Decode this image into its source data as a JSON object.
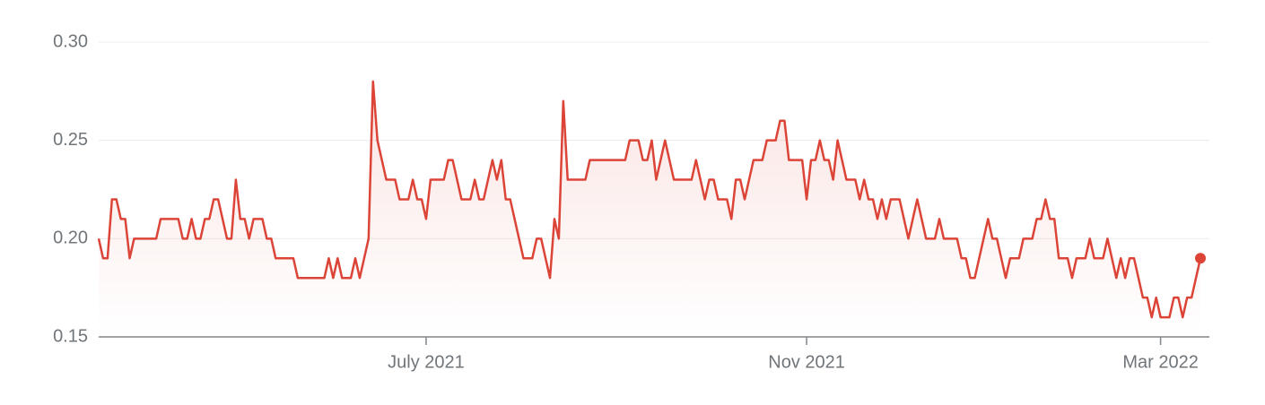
{
  "chart_data": {
    "type": "line",
    "color": "#db4437",
    "grid": true,
    "ylim": [
      0.15,
      0.3
    ],
    "yticks": [
      0.15,
      {
        "value": 0.2,
        "label": "0.20"
      },
      0.25,
      {
        "value": 0.3,
        "label": "0.30"
      }
    ],
    "categories": [
      null,
      null,
      null,
      null,
      null,
      null,
      null,
      null,
      null,
      null,
      null,
      null,
      null,
      null,
      null,
      null,
      null,
      null,
      null,
      null,
      null,
      null,
      null,
      null,
      null,
      null,
      null,
      null,
      null,
      null,
      null,
      null,
      null,
      null,
      null,
      null,
      null,
      null,
      null,
      null,
      null,
      null,
      null,
      null,
      null,
      null,
      null,
      null,
      null,
      null,
      null,
      null,
      null,
      null,
      null,
      null,
      null,
      null,
      null,
      null,
      null,
      null,
      null,
      null,
      null,
      null,
      null,
      null,
      null,
      null,
      null,
      null,
      null,
      null,
      "July 2021",
      null,
      null,
      null,
      null,
      null,
      null,
      null,
      null,
      null,
      null,
      null,
      null,
      null,
      null,
      null,
      null,
      null,
      null,
      null,
      null,
      null,
      null,
      null,
      null,
      null,
      null,
      null,
      null,
      null,
      null,
      null,
      null,
      null,
      null,
      null,
      null,
      null,
      null,
      null,
      null,
      null,
      null,
      null,
      null,
      null,
      null,
      null,
      null,
      null,
      null,
      null,
      null,
      null,
      null,
      null,
      null,
      null,
      null,
      null,
      null,
      null,
      null,
      null,
      null,
      null,
      null,
      null,
      null,
      null,
      null,
      null,
      null,
      null,
      null,
      null,
      null,
      null,
      null,
      null,
      null,
      null,
      null,
      null,
      null,
      null,
      "Nov 2021",
      null,
      null,
      null,
      null,
      null,
      null,
      null,
      null,
      null,
      null,
      null,
      null,
      null,
      null,
      null,
      null,
      null,
      null,
      null,
      null,
      null,
      null,
      null,
      null,
      null,
      null,
      null,
      null,
      null,
      null,
      null,
      null,
      null,
      null,
      null,
      null,
      null,
      null,
      null,
      null,
      null,
      null,
      null,
      null,
      null,
      null,
      null,
      null,
      null,
      null,
      null,
      null,
      null,
      null,
      null,
      null,
      null,
      null,
      null,
      null,
      null,
      null,
      null,
      null,
      null,
      null,
      null,
      null,
      null,
      null,
      null,
      null,
      null,
      null,
      null,
      null,
      null,
      null,
      null,
      "Mar 2022",
      null,
      null,
      null,
      null,
      null,
      null,
      null,
      null,
      null
    ],
    "values": [
      0.2,
      0.19,
      0.19,
      0.22,
      0.22,
      0.21,
      0.21,
      0.19,
      0.2,
      0.2,
      0.2,
      0.2,
      0.2,
      0.2,
      0.21,
      0.21,
      0.21,
      0.21,
      0.21,
      0.2,
      0.2,
      0.21,
      0.2,
      0.2,
      0.21,
      0.21,
      0.22,
      0.22,
      0.21,
      0.2,
      0.2,
      0.23,
      0.21,
      0.21,
      0.2,
      0.21,
      0.21,
      0.21,
      0.2,
      0.2,
      0.19,
      0.19,
      0.19,
      0.19,
      0.19,
      0.18,
      0.18,
      0.18,
      0.18,
      0.18,
      0.18,
      0.18,
      0.19,
      0.18,
      0.19,
      0.18,
      0.18,
      0.18,
      0.19,
      0.18,
      0.19,
      0.2,
      0.28,
      0.25,
      0.24,
      0.23,
      0.23,
      0.23,
      0.22,
      0.22,
      0.22,
      0.23,
      0.22,
      0.22,
      0.21,
      0.23,
      0.23,
      0.23,
      0.23,
      0.24,
      0.24,
      0.23,
      0.22,
      0.22,
      0.22,
      0.23,
      0.22,
      0.22,
      0.23,
      0.24,
      0.23,
      0.24,
      0.22,
      0.22,
      0.21,
      0.2,
      0.19,
      0.19,
      0.19,
      0.2,
      0.2,
      0.19,
      0.18,
      0.21,
      0.2,
      0.27,
      0.23,
      0.23,
      0.23,
      0.23,
      0.23,
      0.24,
      0.24,
      0.24,
      0.24,
      0.24,
      0.24,
      0.24,
      0.24,
      0.24,
      0.25,
      0.25,
      0.25,
      0.24,
      0.24,
      0.25,
      0.23,
      0.24,
      0.25,
      0.24,
      0.23,
      0.23,
      0.23,
      0.23,
      0.23,
      0.24,
      0.23,
      0.22,
      0.23,
      0.23,
      0.22,
      0.22,
      0.22,
      0.21,
      0.23,
      0.23,
      0.22,
      0.23,
      0.24,
      0.24,
      0.24,
      0.25,
      0.25,
      0.25,
      0.26,
      0.26,
      0.24,
      0.24,
      0.24,
      0.24,
      0.22,
      0.24,
      0.24,
      0.25,
      0.24,
      0.24,
      0.23,
      0.25,
      0.24,
      0.23,
      0.23,
      0.23,
      0.22,
      0.23,
      0.22,
      0.22,
      0.21,
      0.22,
      0.21,
      0.22,
      0.22,
      0.22,
      0.21,
      0.2,
      0.21,
      0.22,
      0.21,
      0.2,
      0.2,
      0.2,
      0.21,
      0.2,
      0.2,
      0.2,
      0.2,
      0.19,
      0.19,
      0.18,
      0.18,
      0.19,
      0.2,
      0.21,
      0.2,
      0.2,
      0.19,
      0.18,
      0.19,
      0.19,
      0.19,
      0.2,
      0.2,
      0.2,
      0.21,
      0.21,
      0.22,
      0.21,
      0.21,
      0.19,
      0.19,
      0.19,
      0.18,
      0.19,
      0.19,
      0.19,
      0.2,
      0.19,
      0.19,
      0.19,
      0.2,
      0.19,
      0.18,
      0.19,
      0.18,
      0.19,
      0.19,
      0.18,
      0.17,
      0.17,
      0.16,
      0.17,
      0.16,
      0.16,
      0.16,
      0.17,
      0.17,
      0.16,
      0.17,
      0.17,
      0.18,
      0.19
    ]
  }
}
